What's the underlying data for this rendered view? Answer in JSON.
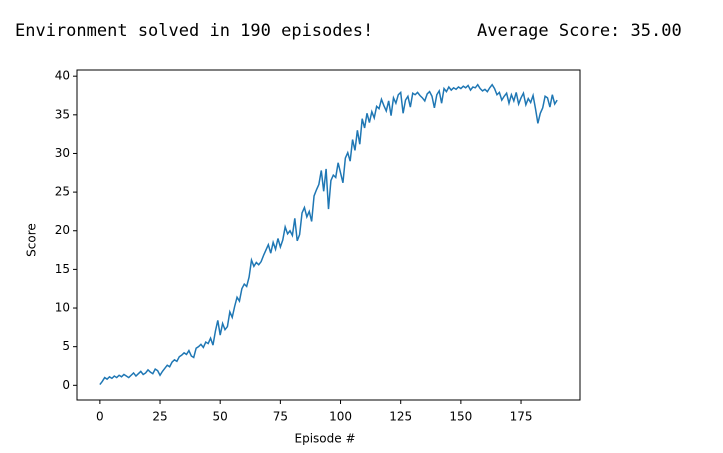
{
  "header": {
    "left": "Environment solved in 190 episodes!",
    "right": "Average Score: 35.00"
  },
  "chart_data": {
    "type": "line",
    "xlabel": "Episode #",
    "ylabel": "Score",
    "x": [
      0,
      1,
      2,
      3,
      4,
      5,
      6,
      7,
      8,
      9,
      10,
      11,
      12,
      13,
      14,
      15,
      16,
      17,
      18,
      19,
      20,
      21,
      22,
      23,
      24,
      25,
      26,
      27,
      28,
      29,
      30,
      31,
      32,
      33,
      34,
      35,
      36,
      37,
      38,
      39,
      40,
      41,
      42,
      43,
      44,
      45,
      46,
      47,
      48,
      49,
      50,
      51,
      52,
      53,
      54,
      55,
      56,
      57,
      58,
      59,
      60,
      61,
      62,
      63,
      64,
      65,
      66,
      67,
      68,
      69,
      70,
      71,
      72,
      73,
      74,
      75,
      76,
      77,
      78,
      79,
      80,
      81,
      82,
      83,
      84,
      85,
      86,
      87,
      88,
      89,
      90,
      91,
      92,
      93,
      94,
      95,
      96,
      97,
      98,
      99,
      100,
      101,
      102,
      103,
      104,
      105,
      106,
      107,
      108,
      109,
      110,
      111,
      112,
      113,
      114,
      115,
      116,
      117,
      118,
      119,
      120,
      121,
      122,
      123,
      124,
      125,
      126,
      127,
      128,
      129,
      130,
      131,
      132,
      133,
      134,
      135,
      136,
      137,
      138,
      139,
      140,
      141,
      142,
      143,
      144,
      145,
      146,
      147,
      148,
      149,
      150,
      151,
      152,
      153,
      154,
      155,
      156,
      157,
      158,
      159,
      160,
      161,
      162,
      163,
      164,
      165,
      166,
      167,
      168,
      169,
      170,
      171,
      172,
      173,
      174,
      175,
      176,
      177,
      178,
      179,
      180,
      181,
      182,
      183,
      184,
      185,
      186,
      187,
      188,
      189,
      190
    ],
    "series": [
      {
        "color": "#1f77b4",
        "values": [
          0.1,
          0.5,
          1.0,
          0.8,
          1.1,
          0.9,
          1.2,
          1.0,
          1.3,
          1.1,
          1.4,
          1.2,
          1.0,
          1.3,
          1.6,
          1.2,
          1.5,
          1.8,
          1.4,
          1.6,
          2.0,
          1.7,
          1.5,
          2.1,
          1.9,
          1.3,
          1.8,
          2.2,
          2.6,
          2.4,
          3.0,
          3.3,
          3.1,
          3.7,
          3.9,
          4.2,
          4.0,
          4.5,
          3.8,
          3.6,
          4.8,
          5.0,
          5.3,
          4.9,
          5.6,
          5.4,
          6.1,
          5.2,
          7.0,
          8.4,
          6.5,
          8.0,
          7.2,
          7.6,
          9.5,
          8.8,
          10.2,
          11.4,
          10.9,
          12.5,
          13.1,
          12.8,
          14.0,
          16.2,
          15.4,
          15.9,
          15.6,
          16.0,
          16.8,
          17.5,
          18.2,
          17.1,
          18.5,
          17.6,
          19.0,
          17.9,
          18.8,
          20.5,
          19.6,
          20.0,
          19.4,
          21.6,
          18.7,
          19.5,
          22.3,
          23.0,
          21.8,
          22.5,
          21.2,
          24.5,
          25.3,
          26.0,
          27.8,
          25.1,
          28.0,
          22.8,
          26.5,
          27.2,
          26.9,
          28.8,
          27.5,
          26.2,
          29.4,
          30.1,
          29.0,
          31.8,
          30.4,
          33.0,
          31.2,
          34.5,
          33.3,
          35.2,
          34.0,
          35.4,
          34.6,
          36.1,
          35.8,
          37.0,
          36.2,
          35.5,
          36.8,
          34.9,
          37.2,
          36.5,
          37.6,
          37.9,
          35.2,
          36.9,
          37.4,
          36.0,
          37.8,
          37.6,
          37.9,
          37.5,
          37.2,
          36.8,
          37.7,
          38.0,
          37.4,
          35.9,
          37.6,
          38.1,
          36.5,
          38.4,
          38.0,
          38.6,
          38.2,
          38.5,
          38.3,
          38.6,
          38.4,
          38.7,
          38.5,
          38.8,
          38.2,
          38.6,
          38.5,
          38.9,
          38.4,
          38.1,
          38.3,
          38.0,
          38.5,
          38.9,
          38.4,
          37.6,
          37.9,
          36.9,
          37.4,
          37.8,
          36.5,
          37.6,
          36.8,
          37.9,
          36.4,
          37.2,
          37.8,
          36.3,
          37.1,
          36.6,
          37.5,
          35.8,
          33.9,
          35.2,
          35.9,
          37.4,
          37.2,
          36.0,
          37.6,
          36.4,
          36.9
        ]
      }
    ],
    "xlim": [
      -9.5,
      199.5
    ],
    "xticks": [
      0,
      25,
      50,
      75,
      100,
      125,
      150,
      175
    ],
    "ylim": [
      -1.9,
      40.8
    ],
    "yticks": [
      0,
      5,
      10,
      15,
      20,
      25,
      30,
      35,
      40
    ],
    "grid": false
  }
}
